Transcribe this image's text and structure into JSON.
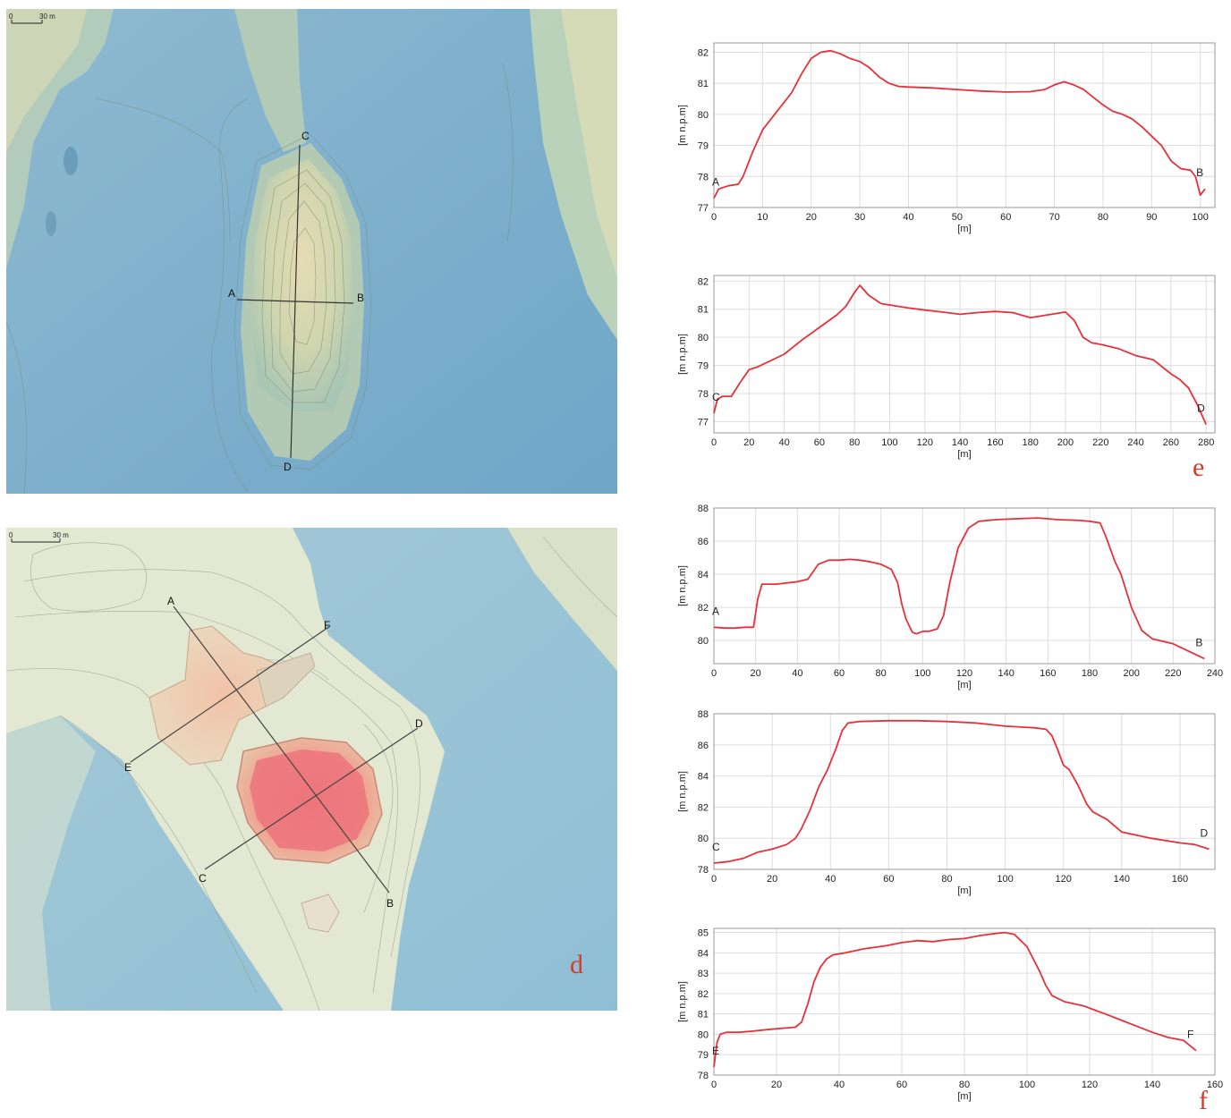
{
  "figure_letters": {
    "d": "d",
    "e": "e",
    "f": "f"
  },
  "maps": {
    "top": {
      "scale_zero": "0",
      "scale_label": "30 m",
      "points": [
        "A",
        "B",
        "C",
        "D"
      ]
    },
    "bottom": {
      "scale_zero": "0",
      "scale_label": "30 m",
      "points": [
        "A",
        "B",
        "C",
        "D",
        "E",
        "F"
      ]
    }
  },
  "colors": {
    "profile_line": "#e8303a",
    "grid": "#dddddd",
    "letter": "#d83a2c"
  },
  "chart_data": [
    {
      "type": "line",
      "title": "",
      "xlabel": "[m]",
      "ylabel": "[m n.p.m]",
      "xlim": [
        0,
        103
      ],
      "ylim": [
        77,
        82.3
      ],
      "xticks": [
        0,
        10,
        20,
        30,
        40,
        50,
        60,
        70,
        80,
        90,
        100
      ],
      "yticks": [
        77,
        78,
        79,
        80,
        81,
        82
      ],
      "start_label": "A",
      "end_label": "B",
      "x": [
        0,
        1,
        3,
        5,
        6,
        8,
        10,
        12,
        14,
        16,
        18,
        20,
        22,
        24,
        26,
        28,
        30,
        32,
        34,
        36,
        38,
        40,
        45,
        50,
        55,
        60,
        65,
        68,
        70,
        72,
        74,
        76,
        78,
        80,
        82,
        84,
        86,
        88,
        90,
        92,
        94,
        96,
        98,
        99,
        100,
        101
      ],
      "y": [
        77.3,
        77.6,
        77.7,
        77.75,
        78.0,
        78.8,
        79.5,
        79.9,
        80.3,
        80.7,
        81.3,
        81.8,
        82.0,
        82.05,
        81.95,
        81.8,
        81.7,
        81.5,
        81.2,
        81.0,
        80.9,
        80.88,
        80.85,
        80.8,
        80.75,
        80.72,
        80.73,
        80.8,
        80.95,
        81.05,
        80.95,
        80.8,
        80.55,
        80.3,
        80.1,
        80.0,
        79.85,
        79.6,
        79.3,
        79.0,
        78.5,
        78.25,
        78.2,
        78.0,
        77.4,
        77.6
      ]
    },
    {
      "type": "line",
      "title": "",
      "xlabel": "[m]",
      "ylabel": "[m n.p.m]",
      "xlim": [
        0,
        285
      ],
      "ylim": [
        76.6,
        82.2
      ],
      "xticks": [
        0,
        20,
        40,
        60,
        80,
        100,
        120,
        140,
        160,
        180,
        200,
        220,
        240,
        260,
        280
      ],
      "yticks": [
        77,
        78,
        79,
        80,
        81,
        82
      ],
      "start_label": "C",
      "end_label": "D",
      "x": [
        0,
        2,
        5,
        10,
        15,
        20,
        25,
        30,
        40,
        50,
        60,
        70,
        75,
        80,
        83,
        88,
        95,
        100,
        110,
        120,
        130,
        140,
        150,
        160,
        170,
        180,
        185,
        190,
        200,
        205,
        210,
        215,
        220,
        230,
        240,
        250,
        260,
        265,
        270,
        275,
        280
      ],
      "y": [
        77.3,
        77.8,
        77.9,
        77.9,
        78.4,
        78.85,
        78.95,
        79.1,
        79.4,
        79.9,
        80.35,
        80.8,
        81.1,
        81.6,
        81.85,
        81.5,
        81.2,
        81.15,
        81.05,
        80.97,
        80.9,
        80.82,
        80.88,
        80.92,
        80.88,
        80.7,
        80.75,
        80.8,
        80.9,
        80.6,
        80.0,
        79.8,
        79.75,
        79.6,
        79.35,
        79.2,
        78.7,
        78.5,
        78.2,
        77.6,
        76.9
      ]
    },
    {
      "type": "line",
      "title": "",
      "xlabel": "[m]",
      "ylabel": "[m n.p.m]",
      "xlim": [
        0,
        240
      ],
      "ylim": [
        78.6,
        88
      ],
      "xticks": [
        0,
        20,
        40,
        60,
        80,
        100,
        120,
        140,
        160,
        180,
        200,
        220,
        240
      ],
      "yticks": [
        80,
        82,
        84,
        86,
        88
      ],
      "start_label": "A",
      "end_label": "B",
      "x": [
        0,
        5,
        10,
        15,
        19,
        21,
        23,
        30,
        40,
        45,
        50,
        55,
        60,
        65,
        70,
        75,
        80,
        85,
        88,
        90,
        92,
        95,
        97,
        100,
        103,
        107,
        110,
        113,
        117,
        122,
        127,
        135,
        145,
        155,
        165,
        175,
        180,
        185,
        188,
        192,
        195,
        200,
        205,
        210,
        220,
        230,
        235
      ],
      "y": [
        80.8,
        80.75,
        80.75,
        80.8,
        80.8,
        82.5,
        83.4,
        83.4,
        83.55,
        83.7,
        84.6,
        84.85,
        84.85,
        84.9,
        84.85,
        84.75,
        84.6,
        84.3,
        83.5,
        82.2,
        81.3,
        80.5,
        80.4,
        80.55,
        80.55,
        80.7,
        81.5,
        83.5,
        85.6,
        86.8,
        87.2,
        87.3,
        87.35,
        87.4,
        87.3,
        87.25,
        87.2,
        87.1,
        86.2,
        84.8,
        84.0,
        82.0,
        80.6,
        80.1,
        79.8,
        79.2,
        78.9
      ]
    },
    {
      "type": "line",
      "title": "",
      "xlabel": "[m]",
      "ylabel": "[m n.p.m]",
      "xlim": [
        0,
        172
      ],
      "ylim": [
        78,
        88
      ],
      "xticks": [
        0,
        20,
        40,
        60,
        80,
        100,
        120,
        140,
        160
      ],
      "yticks": [
        78,
        80,
        82,
        84,
        86,
        88
      ],
      "start_label": "C",
      "end_label": "D",
      "x": [
        0,
        5,
        10,
        15,
        20,
        25,
        28,
        30,
        33,
        36,
        39,
        42,
        44,
        46,
        50,
        60,
        70,
        80,
        90,
        100,
        110,
        114,
        116,
        118,
        120,
        122,
        125,
        128,
        130,
        135,
        140,
        150,
        160,
        165,
        170
      ],
      "y": [
        78.4,
        78.5,
        78.7,
        79.1,
        79.3,
        79.6,
        80.0,
        80.6,
        81.8,
        83.3,
        84.4,
        85.8,
        86.9,
        87.4,
        87.5,
        87.55,
        87.55,
        87.5,
        87.4,
        87.2,
        87.1,
        87.0,
        86.6,
        85.7,
        84.7,
        84.4,
        83.4,
        82.2,
        81.7,
        81.2,
        80.4,
        80.0,
        79.7,
        79.6,
        79.3
      ]
    },
    {
      "type": "line",
      "title": "",
      "xlabel": "[m]",
      "ylabel": "[m n.p.m]",
      "xlim": [
        0,
        160
      ],
      "ylim": [
        78,
        85.2
      ],
      "xticks": [
        0,
        20,
        40,
        60,
        80,
        100,
        120,
        140,
        160
      ],
      "yticks": [
        78,
        79,
        80,
        81,
        82,
        83,
        84,
        85
      ],
      "start_label": "E",
      "end_label": "F",
      "x": [
        0,
        1,
        2,
        4,
        8,
        12,
        18,
        22,
        26,
        28,
        30,
        32,
        34,
        36,
        38,
        42,
        48,
        55,
        60,
        65,
        70,
        75,
        80,
        85,
        90,
        93,
        96,
        100,
        104,
        106,
        108,
        112,
        118,
        125,
        130,
        135,
        140,
        145,
        150,
        154
      ],
      "y": [
        78.4,
        79.6,
        80.0,
        80.1,
        80.1,
        80.15,
        80.25,
        80.3,
        80.35,
        80.6,
        81.5,
        82.6,
        83.3,
        83.7,
        83.9,
        84.0,
        84.2,
        84.35,
        84.5,
        84.6,
        84.55,
        84.65,
        84.7,
        84.85,
        84.95,
        85.0,
        84.9,
        84.3,
        83.1,
        82.4,
        81.9,
        81.6,
        81.4,
        81.0,
        80.7,
        80.4,
        80.1,
        79.85,
        79.7,
        79.2
      ]
    }
  ]
}
